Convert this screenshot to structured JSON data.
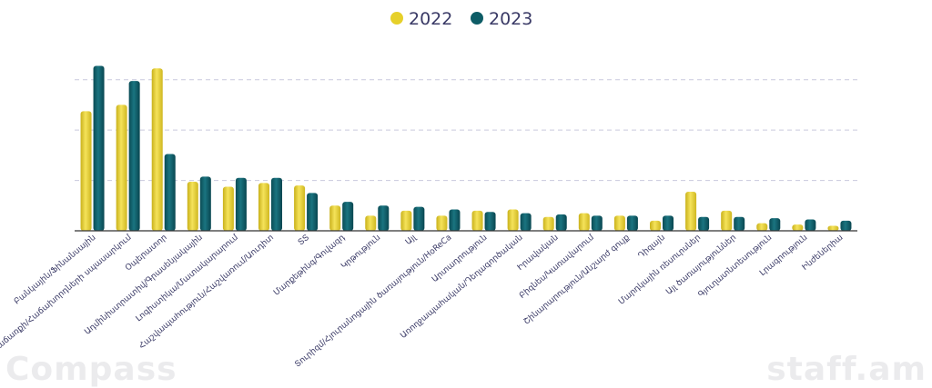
{
  "chart_data": {
    "type": "bar",
    "categories": [
      "Բանկային/Ֆինանսային",
      "Վաճառքի/Հաճախորդների սպասարկում",
      "Օպերատոր",
      "Ադմինիստրատիվ/Գրասենյակային",
      "Լոգիստիկա/Մատակարարում",
      "Հաշվապահություն/Հաշվառում/Աուդիտ",
      "ՏՏ",
      "Մարքեթինգ/Գովազդ",
      "Կրթություն",
      "Այլ",
      "Տուրիզմ/Հյուրանոցային ծառայություն/HoReCa",
      "Արտադրություն",
      "Առողջապահական/Դեղագործական",
      "Իրավական",
      "Բիզնես/Կառավարում",
      "Շինարարություն/Անշարժ գույք",
      "Դիզայն",
      "Մարդկային ռեսուրսներ",
      "Այլ ծառայություններ",
      "Գյուղատնտեսություն",
      "Լրագրություն",
      "Ինժեներիա"
    ],
    "series": [
      {
        "name": "2022",
        "color": "#e6d02a",
        "values": [
          95,
          100,
          129,
          39,
          35,
          38,
          36,
          20,
          12,
          16,
          12,
          16,
          17,
          11,
          14,
          12,
          8,
          31,
          16,
          6,
          5,
          4
        ]
      },
      {
        "name": "2023",
        "color": "#0d5c66",
        "values": [
          131,
          119,
          61,
          43,
          42,
          42,
          30,
          23,
          20,
          19,
          17,
          15,
          14,
          13,
          12,
          12,
          12,
          11,
          11,
          10,
          9,
          8
        ]
      }
    ],
    "ylim": [
      0,
      140
    ],
    "grid": true,
    "legend_position": "top-center",
    "xlabel": "",
    "ylabel": ""
  },
  "watermark": {
    "left": "Compass",
    "right": "staff.am"
  }
}
